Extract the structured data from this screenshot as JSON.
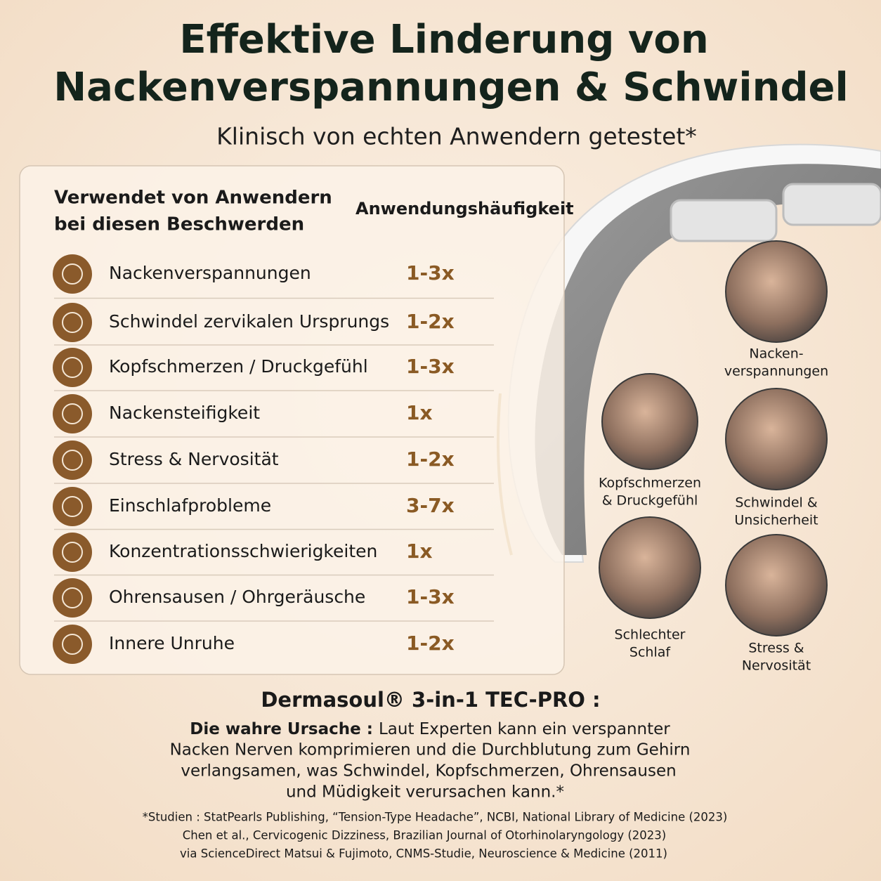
{
  "header": {
    "title": [
      "Effektive Linderung von",
      "Nackenverspannungen & Schwindel"
    ],
    "subtitle": "Klinisch von echten Anwendern getestet*"
  },
  "table": {
    "columns": [
      [
        "Verwendet von Anwendern",
        "bei diesen Beschwerden"
      ],
      "Anwendungshäufigkeit"
    ],
    "rows": [
      [
        "Nackenverspannungen",
        "1-3x"
      ],
      [
        "Schwindel zervikalen Ursprungs",
        "1-2x"
      ],
      [
        "Kopfschmerzen / Druckgefühl",
        "1-3x"
      ],
      [
        "Nackensteifigkeit",
        "1x"
      ],
      [
        "Stress & Nervosität",
        "1-2x"
      ],
      [
        "Einschlafprobleme",
        "3-7x"
      ],
      [
        "Konzentrationsschwierigkeiten",
        "1x"
      ],
      [
        "Ohrensausen / Ohrgeräusche",
        "1-3x"
      ],
      [
        "Innere Unruhe",
        "1-2x"
      ]
    ]
  },
  "photos": [
    {
      "caption": [
        "Nacken-",
        "verspannungen"
      ]
    },
    {
      "caption": [
        "Kopfschmerzen",
        "& Druckgefühl"
      ]
    },
    {
      "caption": [
        "Schwindel &",
        "Unsicherheit"
      ]
    },
    {
      "caption": [
        "Schlechter",
        "Schlaf"
      ]
    },
    {
      "caption": [
        "Stress &",
        "Nervosität"
      ]
    }
  ],
  "product": {
    "title": "Dermasoul® 3-in-1 TEC-PRO :",
    "lead": "Die wahre Ursache :",
    "text": [
      "Laut Experten kann ein verspannter",
      "Nacken Nerven komprimieren und die Durchblutung zum Gehirn",
      "verlangsamen, was Schwindel, Kopfschmerzen, Ohrensausen",
      "und Müdigkeit verursachen kann.*"
    ]
  },
  "footnotes": [
    "*Studien : StatPearls Publishing, “Tension-Type Headache”, NCBI, National Library of Medicine (2023)",
    "Chen et al., Cervicogenic Dizziness, Brazilian Journal of Otorhinolaryngology (2023)",
    "via ScienceDirect Matsui & Fujimoto, CNMS-Studie, Neuroscience & Medicine (2011)"
  ]
}
